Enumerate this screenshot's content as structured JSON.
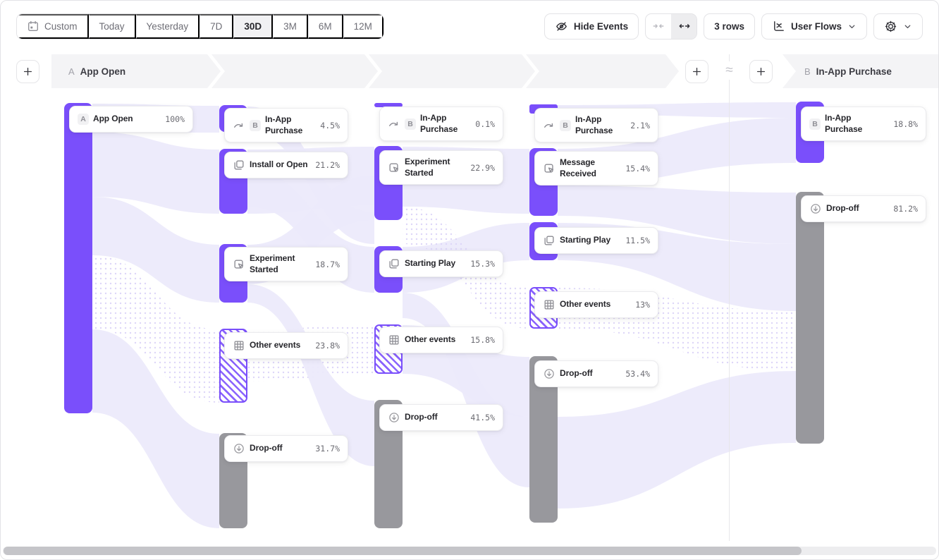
{
  "toolbar": {
    "date_ranges": [
      {
        "label": "Custom",
        "icon": "calendar-icon",
        "active": false
      },
      {
        "label": "Today",
        "active": false
      },
      {
        "label": "Yesterday",
        "active": false
      },
      {
        "label": "7D",
        "active": false
      },
      {
        "label": "30D",
        "active": true
      },
      {
        "label": "3M",
        "active": false
      },
      {
        "label": "6M",
        "active": false
      },
      {
        "label": "12M",
        "active": false
      }
    ],
    "hide_events": {
      "label": "Hide Events",
      "icon": "eye-off-icon"
    },
    "width_toggle": {
      "options": [
        "collapse-icon",
        "expand-icon"
      ],
      "active": "expand-icon"
    },
    "rows_button": {
      "label": "3 rows"
    },
    "chart_type": {
      "label": "User Flows",
      "icon": "line-chart-icon"
    },
    "settings": {
      "icon": "gear-icon"
    }
  },
  "flow_header": {
    "start_step": {
      "badge": "A",
      "label": "App Open"
    },
    "end_step": {
      "badge": "B",
      "label": "In-App Purchase"
    },
    "approx_symbol": "≈"
  },
  "colors": {
    "accent_purple": "#7A4FFB",
    "dropoff_gray": "#98989D",
    "ribbon_purple": "#ECE9FB"
  },
  "chart_data": {
    "type": "sankey",
    "title": "User Flows from A App Open to B In-App Purchase, 3 rows, 30D",
    "columns": [
      {
        "role": "start-step",
        "nodes": [
          {
            "badge": "A",
            "label": "App Open",
            "value": "100%",
            "kind": "purple"
          }
        ]
      },
      {
        "role": "step-1",
        "nodes": [
          {
            "icon": "flow-arrow-icon",
            "badge": "B",
            "label": "In-App Purchase",
            "value": "4.5%",
            "kind": "purple"
          },
          {
            "icon": "overlap-squares-icon",
            "label": "Install or Open",
            "value": "21.2%",
            "kind": "purple"
          },
          {
            "icon": "cursor-click-icon",
            "label": "Experiment Started",
            "value": "18.7%",
            "kind": "purple"
          },
          {
            "icon": "grid-icon",
            "label": "Other events",
            "value": "23.8%",
            "kind": "hatched"
          },
          {
            "icon": "drop-off-icon",
            "label": "Drop-off",
            "value": "31.7%",
            "kind": "gray"
          }
        ]
      },
      {
        "role": "step-2",
        "nodes": [
          {
            "icon": "flow-arrow-icon",
            "badge": "B",
            "label": "In-App Purchase",
            "value": "0.1%",
            "kind": "purple"
          },
          {
            "icon": "cursor-click-icon",
            "label": "Experiment Started",
            "value": "22.9%",
            "kind": "purple"
          },
          {
            "icon": "overlap-squares-icon",
            "label": "Starting Play",
            "value": "15.3%",
            "kind": "purple"
          },
          {
            "icon": "grid-icon",
            "label": "Other events",
            "value": "15.8%",
            "kind": "hatched"
          },
          {
            "icon": "drop-off-icon",
            "label": "Drop-off",
            "value": "41.5%",
            "kind": "gray"
          }
        ]
      },
      {
        "role": "step-3",
        "nodes": [
          {
            "icon": "flow-arrow-icon",
            "badge": "B",
            "label": "In-App Purchase",
            "value": "2.1%",
            "kind": "purple"
          },
          {
            "icon": "cursor-click-icon",
            "label": "Message Received",
            "value": "15.4%",
            "kind": "purple"
          },
          {
            "icon": "overlap-squares-icon",
            "label": "Starting Play",
            "value": "11.5%",
            "kind": "purple"
          },
          {
            "icon": "grid-icon",
            "label": "Other events",
            "value": "13%",
            "kind": "hatched"
          },
          {
            "icon": "drop-off-icon",
            "label": "Drop-off",
            "value": "53.4%",
            "kind": "gray"
          }
        ]
      },
      {
        "role": "end-step",
        "nodes": [
          {
            "badge": "B",
            "label": "In-App Purchase",
            "value": "18.8%",
            "kind": "purple"
          },
          {
            "icon": "drop-off-icon",
            "label": "Drop-off",
            "value": "81.2%",
            "kind": "gray"
          }
        ]
      }
    ]
  }
}
